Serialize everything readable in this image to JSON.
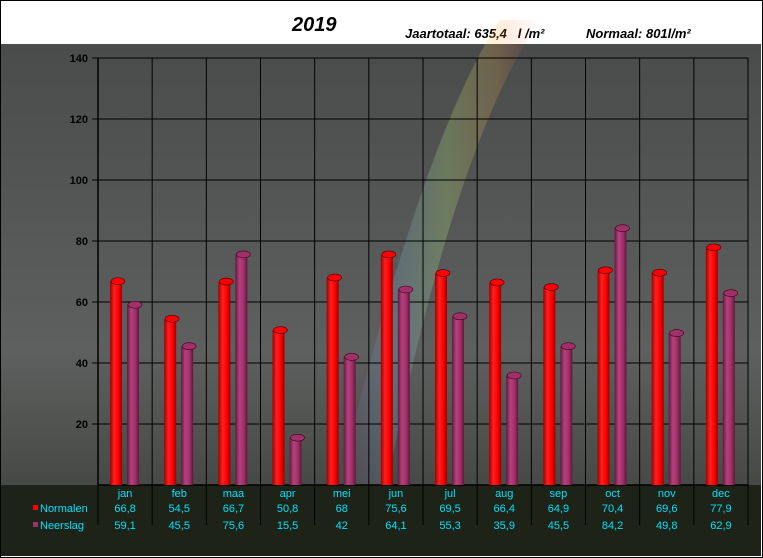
{
  "header": {
    "title": "2019",
    "total_label": "Jaartotaal:",
    "total_value": "635,4",
    "total_unit": "l /m²",
    "normal_text": "Normaal: 801l/m²"
  },
  "colors": {
    "normalen": "#ff0000",
    "neerslag": "#a0306a",
    "table_text": "#00e0ff",
    "grid": "#000000"
  },
  "chart_data": {
    "type": "bar",
    "categories": [
      "jan",
      "feb",
      "maa",
      "apr",
      "mei",
      "jun",
      "jul",
      "aug",
      "sep",
      "oct",
      "nov",
      "dec"
    ],
    "series": [
      {
        "name": "Normalen",
        "values": [
          66.8,
          54.5,
          66.7,
          50.8,
          68,
          75.6,
          69.5,
          66.4,
          64.9,
          70.4,
          69.6,
          77.9
        ],
        "labels": [
          "66,8",
          "54,5",
          "66,7",
          "50,8",
          "68",
          "75,6",
          "69,5",
          "66,4",
          "64,9",
          "70,4",
          "69,6",
          "77,9"
        ]
      },
      {
        "name": "Neerslag",
        "values": [
          59.1,
          45.5,
          75.6,
          15.5,
          42,
          64.1,
          55.3,
          35.9,
          45.5,
          84.2,
          49.8,
          62.9
        ],
        "labels": [
          "59,1",
          "45,5",
          "75,6",
          "15,5",
          "42",
          "64,1",
          "55,3",
          "35,9",
          "45,5",
          "84,2",
          "49,8",
          "62,9"
        ]
      }
    ],
    "yticks": [
      "140",
      "120",
      "100",
      "80",
      "60",
      "40",
      "20"
    ],
    "ylim": [
      0,
      140
    ],
    "grid": true,
    "legend": "table-bottom"
  }
}
